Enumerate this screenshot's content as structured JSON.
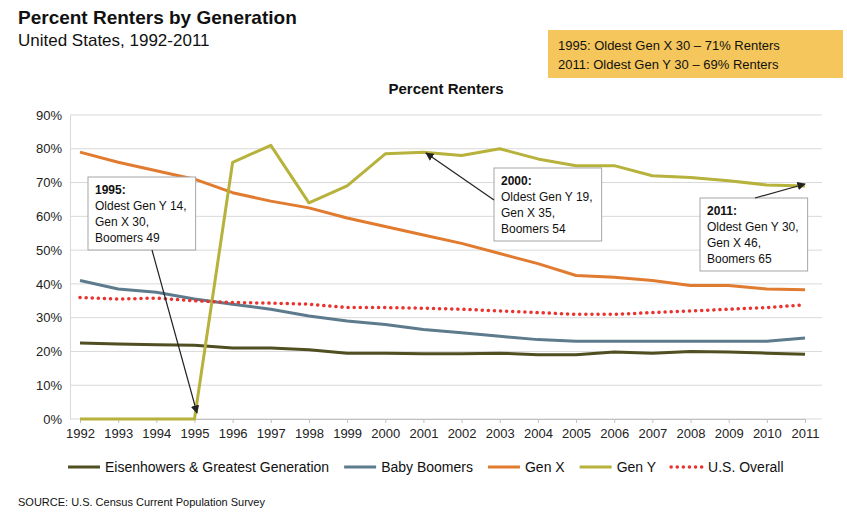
{
  "chart_data": {
    "type": "line",
    "title": "Percent Renters by Generation",
    "subtitle": "United States, 1992-2011",
    "plot_title": "Percent Renters",
    "source": "SOURCE: U.S. Census Current Population Survey",
    "highlight": [
      "1995: Oldest Gen X 30 – 71% Renters",
      "2011: Oldest Gen Y 30 – 69% Renters"
    ],
    "annotations": [
      {
        "lines": [
          "1995:",
          "Oldest Gen Y 14,",
          "Gen X 30,",
          "Boomers 49"
        ]
      },
      {
        "lines": [
          "2000:",
          "Oldest Gen Y 19,",
          "Gen X 35,",
          "Boomers 54"
        ]
      },
      {
        "lines": [
          "2011:",
          "Oldest Gen Y 30,",
          "Gen X 46,",
          "Boomers 65"
        ]
      }
    ],
    "categories": [
      "1992",
      "1993",
      "1994",
      "1995",
      "1996",
      "1997",
      "1998",
      "1999",
      "2000",
      "2001",
      "2002",
      "2003",
      "2004",
      "2005",
      "2006",
      "2007",
      "2008",
      "2009",
      "2010",
      "2011"
    ],
    "series": [
      {
        "name": "Eisenhowers & Greatest Generation",
        "color": "#4f4f22",
        "line_style": "solid",
        "values": [
          22.5,
          22.2,
          22.0,
          21.8,
          21.0,
          21.0,
          20.5,
          19.5,
          19.5,
          19.3,
          19.3,
          19.5,
          19.0,
          19.0,
          19.8,
          19.5,
          20.0,
          19.8,
          19.5,
          19.2
        ]
      },
      {
        "name": "Baby Boomers",
        "color": "#5d7b8c",
        "line_style": "solid",
        "values": [
          41,
          38.5,
          37.5,
          35.5,
          34,
          32.5,
          30.5,
          29,
          28,
          26.5,
          25.5,
          24.5,
          23.5,
          23,
          23,
          23,
          23,
          23,
          23,
          24
        ]
      },
      {
        "name": "Gen X",
        "color": "#e07b30",
        "line_style": "solid",
        "values": [
          79,
          76,
          73.5,
          71,
          67,
          64.5,
          62.5,
          59.5,
          57,
          54.5,
          52,
          49,
          46,
          42.5,
          42,
          41,
          39.5,
          39.5,
          38.5,
          38.3
        ]
      },
      {
        "name": "Gen Y",
        "color": "#b6b23c",
        "line_style": "solid",
        "values": [
          0,
          0,
          0,
          0,
          76,
          81,
          64,
          69,
          78.5,
          79,
          78,
          80,
          77,
          75,
          75,
          72,
          71.5,
          70.5,
          69.3,
          69
        ]
      },
      {
        "name": "U.S. Overall",
        "color": "#e8332f",
        "line_style": "dotted",
        "values": [
          36,
          35.5,
          35.8,
          35,
          34.5,
          34.3,
          34,
          33,
          33,
          32.8,
          32.5,
          32,
          31.5,
          31,
          31,
          31.5,
          32,
          32.5,
          33,
          33.8
        ]
      }
    ],
    "ylim": [
      0,
      90
    ],
    "yticks": [
      {
        "value": 0,
        "label": "0%"
      },
      {
        "value": 10,
        "label": "10%"
      },
      {
        "value": 20,
        "label": "20%"
      },
      {
        "value": 30,
        "label": "30%"
      },
      {
        "value": 40,
        "label": "40%"
      },
      {
        "value": 50,
        "label": "50%"
      },
      {
        "value": 60,
        "label": "60%"
      },
      {
        "value": 70,
        "label": "70%"
      },
      {
        "value": 80,
        "label": "80%"
      },
      {
        "value": 90,
        "label": "90%"
      }
    ],
    "grid": true,
    "legend": "bottom"
  }
}
